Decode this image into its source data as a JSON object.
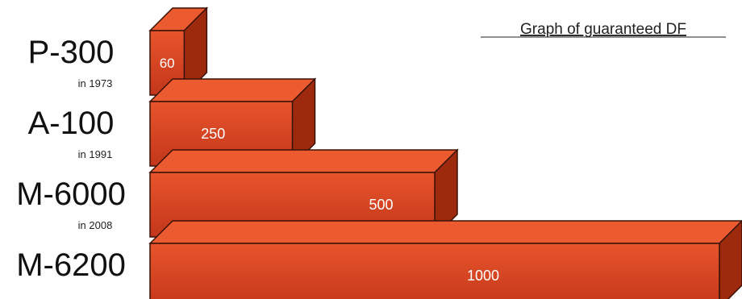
{
  "chart_data": {
    "type": "bar",
    "orientation": "horizontal-3d",
    "title": "Graph of guaranteed DF",
    "categories": [
      "P-300",
      "A-100",
      "M-6000",
      "M-6200"
    ],
    "years": [
      "in 1973",
      "in 1991",
      "in 2008",
      ""
    ],
    "values": [
      60,
      250,
      500,
      1000
    ],
    "value_labels": [
      "60",
      "250",
      "500",
      "1000"
    ],
    "xlabel": "",
    "ylabel": "",
    "grid": false,
    "legend": "none",
    "colors": {
      "front": "#d0401c",
      "front_light": "#e8552c",
      "top": "#ec5a30",
      "side": "#9e2a0e",
      "edge": "#3a1206"
    }
  }
}
